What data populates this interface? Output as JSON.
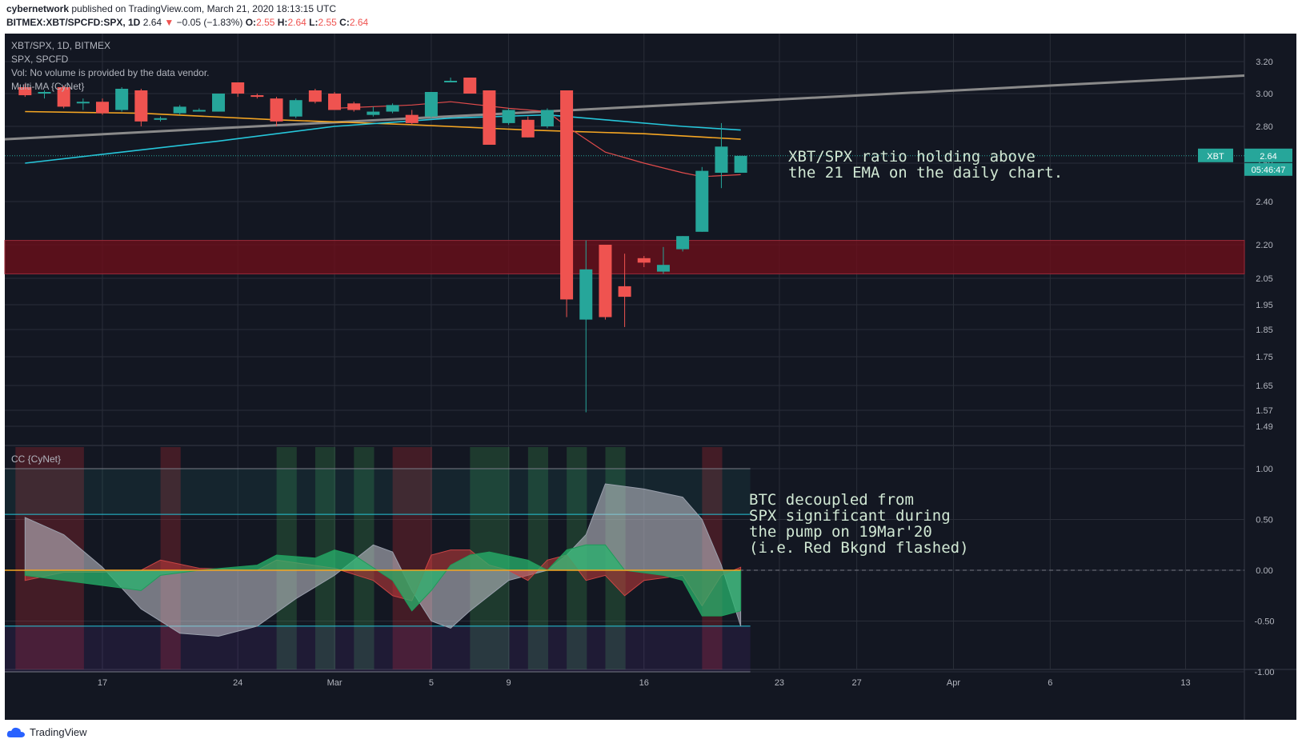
{
  "header": {
    "publisher": "cybernetwork",
    "published_text": " published on TradingView.com, March 21, 2020 18:13:15 UTC",
    "symbol_line": "BITMEX:XBT/SPCFD:SPX, 1D",
    "last": "2.64",
    "change": "−0.05 (−1.83%)",
    "o_label": "O:",
    "o": "2.55",
    "h_label": "H:",
    "h": "2.64",
    "l_label": "L:",
    "l": "2.55",
    "c_label": "C:",
    "c": "2.64"
  },
  "legend": {
    "line1": "XBT/SPX, 1D, BITMEX",
    "line2": "SPX, SPCFD",
    "line3": "Vol: No volume is provided by the data vendor.",
    "line4": "Multi-MA {CyNet}",
    "indicator": "CC {CyNet}"
  },
  "price_tag": {
    "symbol": "XBT",
    "value": "2.64",
    "countdown": "05:46:47"
  },
  "annotations": {
    "main": "XBT/SPX ratio holding above\nthe 21 EMA on the daily chart.",
    "indicator": "BTC decoupled from\nSPX significant during\nthe pump on 19Mar'20\n(i.e. Red Bkgnd flashed)"
  },
  "footer": {
    "brand": "TradingView"
  },
  "colors": {
    "background": "#131722",
    "up": "#26a69a",
    "down": "#ef5350",
    "ema_cyan": "#26c6da",
    "ma_orange": "#f5a623",
    "ma_red": "#e04b4b",
    "trend_gray": "#8a8a8a",
    "zone": "#6b0f1a"
  },
  "chart_data": [
    {
      "type": "candlestick",
      "title": "XBT/SPX, 1D, BITMEX",
      "y_ticks": [
        "3.20",
        "3.00",
        "2.80",
        "2.60",
        "2.40",
        "2.20",
        "2.05",
        "1.95",
        "1.85",
        "1.75",
        "1.65",
        "1.57",
        "1.49"
      ],
      "x_ticks": [
        {
          "label": "17",
          "day": 17
        },
        {
          "label": "24",
          "day": 24
        },
        {
          "label": "Mar",
          "day": 29
        },
        {
          "label": "5",
          "day": 34
        },
        {
          "label": "9",
          "day": 38
        },
        {
          "label": "16",
          "day": 45
        },
        {
          "label": "23",
          "day": 52
        },
        {
          "label": "27",
          "day": 56
        },
        {
          "label": "Apr",
          "day": 61
        },
        {
          "label": "6",
          "day": 66
        },
        {
          "label": "13",
          "day": 73
        }
      ],
      "candles": [
        {
          "d": 13,
          "o": 3.04,
          "h": 3.06,
          "l": 2.98,
          "c": 2.99
        },
        {
          "d": 14,
          "o": 3.0,
          "h": 3.02,
          "l": 2.97,
          "c": 3.01
        },
        {
          "d": 15,
          "o": 3.04,
          "h": 3.05,
          "l": 2.91,
          "c": 2.92
        },
        {
          "d": 16,
          "o": 2.95,
          "h": 2.97,
          "l": 2.9,
          "c": 2.95
        },
        {
          "d": 17,
          "o": 2.95,
          "h": 2.97,
          "l": 2.87,
          "c": 2.88
        },
        {
          "d": 18,
          "o": 2.9,
          "h": 3.04,
          "l": 2.89,
          "c": 3.03
        },
        {
          "d": 19,
          "o": 3.02,
          "h": 3.03,
          "l": 2.8,
          "c": 2.83
        },
        {
          "d": 20,
          "o": 2.84,
          "h": 2.86,
          "l": 2.83,
          "c": 2.85
        },
        {
          "d": 21,
          "o": 2.88,
          "h": 2.93,
          "l": 2.87,
          "c": 2.92
        },
        {
          "d": 22,
          "o": 2.9,
          "h": 2.91,
          "l": 2.89,
          "c": 2.9
        },
        {
          "d": 23,
          "o": 2.89,
          "h": 3.0,
          "l": 2.89,
          "c": 3.0
        },
        {
          "d": 24,
          "o": 3.07,
          "h": 3.07,
          "l": 2.98,
          "c": 3.0
        },
        {
          "d": 25,
          "o": 2.99,
          "h": 3.0,
          "l": 2.97,
          "c": 2.98
        },
        {
          "d": 26,
          "o": 2.97,
          "h": 2.98,
          "l": 2.8,
          "c": 2.83
        },
        {
          "d": 27,
          "o": 2.86,
          "h": 2.97,
          "l": 2.85,
          "c": 2.96
        },
        {
          "d": 28,
          "o": 3.02,
          "h": 3.03,
          "l": 2.94,
          "c": 2.95
        },
        {
          "d": 29,
          "o": 3.0,
          "h": 3.01,
          "l": 2.9,
          "c": 2.9
        },
        {
          "d": 30,
          "o": 2.94,
          "h": 2.95,
          "l": 2.89,
          "c": 2.9
        },
        {
          "d": 31,
          "o": 2.87,
          "h": 2.92,
          "l": 2.86,
          "c": 2.89
        },
        {
          "d": 32,
          "o": 2.89,
          "h": 2.94,
          "l": 2.88,
          "c": 2.93
        },
        {
          "d": 33,
          "o": 2.87,
          "h": 2.9,
          "l": 2.81,
          "c": 2.82
        },
        {
          "d": 34,
          "o": 2.86,
          "h": 3.01,
          "l": 2.85,
          "c": 3.01
        },
        {
          "d": 35,
          "o": 3.07,
          "h": 3.1,
          "l": 3.07,
          "c": 3.08
        },
        {
          "d": 36,
          "o": 3.1,
          "h": 3.1,
          "l": 3.0,
          "c": 3.0
        },
        {
          "d": 37,
          "o": 3.02,
          "h": 3.02,
          "l": 2.7,
          "c": 2.7
        },
        {
          "d": 38,
          "o": 2.82,
          "h": 2.91,
          "l": 2.81,
          "c": 2.9
        },
        {
          "d": 39,
          "o": 2.84,
          "h": 2.86,
          "l": 2.74,
          "c": 2.74
        },
        {
          "d": 40,
          "o": 2.8,
          "h": 2.91,
          "l": 2.79,
          "c": 2.9
        },
        {
          "d": 41,
          "o": 3.02,
          "h": 3.02,
          "l": 1.9,
          "c": 1.97
        },
        {
          "d": 42,
          "o": 1.89,
          "h": 2.22,
          "l": 1.56,
          "c": 2.09
        },
        {
          "d": 43,
          "o": 2.2,
          "h": 2.2,
          "l": 1.89,
          "c": 1.9
        },
        {
          "d": 44,
          "o": 2.02,
          "h": 2.16,
          "l": 1.86,
          "c": 1.98
        },
        {
          "d": 45,
          "o": 2.14,
          "h": 2.15,
          "l": 2.1,
          "c": 2.12
        },
        {
          "d": 46,
          "o": 2.08,
          "h": 2.19,
          "l": 2.07,
          "c": 2.11
        },
        {
          "d": 47,
          "o": 2.18,
          "h": 2.24,
          "l": 2.17,
          "c": 2.24
        },
        {
          "d": 48,
          "o": 2.26,
          "h": 2.58,
          "l": 2.26,
          "c": 2.56
        },
        {
          "d": 49,
          "o": 2.55,
          "h": 2.82,
          "l": 2.47,
          "c": 2.69
        },
        {
          "d": 50,
          "o": 2.55,
          "h": 2.64,
          "l": 2.55,
          "c": 2.64
        }
      ],
      "ema_cyan": [
        [
          13,
          2.6
        ],
        [
          18,
          2.66
        ],
        [
          23,
          2.72
        ],
        [
          29,
          2.8
        ],
        [
          35,
          2.85
        ],
        [
          40,
          2.87
        ],
        [
          43,
          2.84
        ],
        [
          47,
          2.8
        ],
        [
          50,
          2.78
        ]
      ],
      "ma_orange": [
        [
          13,
          2.89
        ],
        [
          19,
          2.88
        ],
        [
          26,
          2.84
        ],
        [
          33,
          2.81
        ],
        [
          39,
          2.78
        ],
        [
          45,
          2.76
        ],
        [
          50,
          2.73
        ]
      ],
      "ma_red": [
        [
          29,
          2.91
        ],
        [
          33,
          2.93
        ],
        [
          35,
          2.95
        ],
        [
          38,
          2.91
        ],
        [
          40,
          2.89
        ],
        [
          41,
          2.8
        ],
        [
          43,
          2.66
        ],
        [
          45,
          2.6
        ],
        [
          47,
          2.55
        ],
        [
          48,
          2.53
        ],
        [
          50,
          2.54
        ]
      ],
      "trendline": [
        [
          13,
          2.73
        ],
        [
          74,
          3.1
        ]
      ],
      "zone": [
        2.07,
        2.22
      ],
      "last_price": 2.64
    },
    {
      "type": "area",
      "title": "CC {CyNet}",
      "y_ticks": [
        "1.00",
        "0.50",
        "0.00",
        "-0.50",
        "-1.00"
      ],
      "ylim": [
        -1.2,
        1.25
      ],
      "levels": [
        1.0,
        0.55,
        -0.55,
        -1.0
      ],
      "gray": [
        [
          13,
          0.52
        ],
        [
          15,
          0.35
        ],
        [
          17,
          0.03
        ],
        [
          19,
          -0.38
        ],
        [
          21,
          -0.62
        ],
        [
          23,
          -0.65
        ],
        [
          25,
          -0.55
        ],
        [
          27,
          -0.28
        ],
        [
          29,
          -0.05
        ],
        [
          31,
          0.25
        ],
        [
          32,
          0.18
        ],
        [
          33,
          -0.2
        ],
        [
          34,
          -0.5
        ],
        [
          35,
          -0.57
        ],
        [
          36,
          -0.4
        ],
        [
          38,
          -0.1
        ],
        [
          40,
          0.0
        ],
        [
          41,
          0.15
        ],
        [
          42,
          0.35
        ],
        [
          43,
          0.85
        ],
        [
          45,
          0.8
        ],
        [
          47,
          0.72
        ],
        [
          48,
          0.5
        ],
        [
          49,
          0.05
        ],
        [
          50,
          -0.55
        ]
      ],
      "green": [
        [
          13,
          -0.05
        ],
        [
          15,
          -0.1
        ],
        [
          17,
          -0.15
        ],
        [
          19,
          -0.2
        ],
        [
          20,
          -0.05
        ],
        [
          22,
          0.0
        ],
        [
          25,
          0.05
        ],
        [
          26,
          0.15
        ],
        [
          28,
          0.12
        ],
        [
          29,
          0.2
        ],
        [
          30,
          0.15
        ],
        [
          32,
          -0.1
        ],
        [
          33,
          -0.4
        ],
        [
          34,
          -0.2
        ],
        [
          35,
          0.05
        ],
        [
          36,
          0.15
        ],
        [
          37,
          0.18
        ],
        [
          39,
          0.1
        ],
        [
          40,
          0.0
        ],
        [
          41,
          0.2
        ],
        [
          42,
          0.25
        ],
        [
          43,
          0.25
        ],
        [
          44,
          0.0
        ],
        [
          46,
          -0.05
        ],
        [
          47,
          -0.1
        ],
        [
          48,
          -0.45
        ],
        [
          49,
          -0.45
        ],
        [
          50,
          -0.4
        ]
      ],
      "red": [
        [
          13,
          -0.1
        ],
        [
          15,
          -0.02
        ],
        [
          17,
          -0.02
        ],
        [
          19,
          0.0
        ],
        [
          20,
          0.1
        ],
        [
          22,
          0.02
        ],
        [
          25,
          0.0
        ],
        [
          26,
          0.1
        ],
        [
          29,
          0.02
        ],
        [
          31,
          -0.1
        ],
        [
          32,
          -0.25
        ],
        [
          33,
          -0.3
        ],
        [
          34,
          0.15
        ],
        [
          35,
          0.2
        ],
        [
          36,
          0.2
        ],
        [
          37,
          0.05
        ],
        [
          38,
          0.0
        ],
        [
          39,
          -0.1
        ],
        [
          40,
          0.1
        ],
        [
          41,
          0.15
        ],
        [
          42,
          -0.1
        ],
        [
          43,
          -0.05
        ],
        [
          44,
          -0.25
        ],
        [
          45,
          -0.1
        ],
        [
          47,
          -0.05
        ],
        [
          48,
          -0.35
        ],
        [
          49,
          -0.05
        ],
        [
          50,
          0.03
        ]
      ],
      "background_bands": [
        {
          "from": 13,
          "to": 16.5,
          "kind": "red"
        },
        {
          "from": 20.5,
          "to": 21.5,
          "kind": "red"
        },
        {
          "from": 26.5,
          "to": 27.5,
          "kind": "green"
        },
        {
          "from": 28.5,
          "to": 29.5,
          "kind": "green"
        },
        {
          "from": 30.5,
          "to": 31.5,
          "kind": "green"
        },
        {
          "from": 32.5,
          "to": 34.5,
          "kind": "red"
        },
        {
          "from": 36.5,
          "to": 38.5,
          "kind": "green"
        },
        {
          "from": 39.5,
          "to": 40.5,
          "kind": "green"
        },
        {
          "from": 41.5,
          "to": 42.5,
          "kind": "green"
        },
        {
          "from": 43.5,
          "to": 44.5,
          "kind": "green"
        },
        {
          "from": 48.5,
          "to": 49.5,
          "kind": "red"
        }
      ]
    }
  ]
}
